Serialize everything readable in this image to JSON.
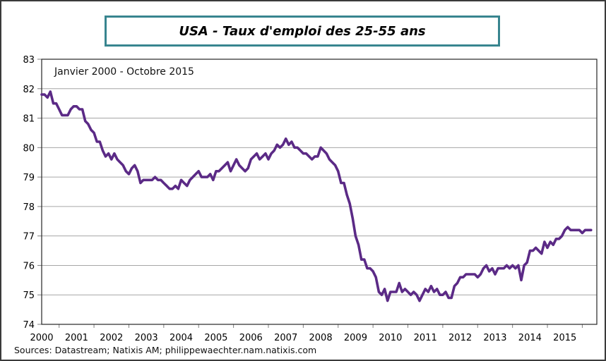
{
  "window": {
    "background": "#ffffff",
    "outer_border_color": "#3a3a3a"
  },
  "title": {
    "text": "USA - Taux d'emploi des 25-55 ans",
    "border_color": "#38858f"
  },
  "subtitle": "Janvier 2000 - Octobre 2015",
  "source": "Sources: Datastream; Natixis AM; philippewaechter.nam.natixis.com",
  "chart_data": {
    "type": "line",
    "title": "USA - Taux d'emploi des 25-55 ans",
    "subtitle": "Janvier 2000 - Octobre 2015",
    "frequency": "monthly",
    "x_start": "2000-01",
    "x_end": "2015-10",
    "ylim": [
      74,
      83
    ],
    "y_ticks": [
      83,
      82,
      81,
      80,
      79,
      78,
      77,
      76,
      75,
      74
    ],
    "x_tick_labels": [
      "2000",
      "2001",
      "2002",
      "2003",
      "2004",
      "2005",
      "2006",
      "2007",
      "2008",
      "2009",
      "2010",
      "2011",
      "2012",
      "2013",
      "2014",
      "2015"
    ],
    "grid": "horizontal",
    "legend": "none",
    "line_color": "#5b2a86",
    "grid_color": "#a6a6a6",
    "axis_color": "#262626",
    "tick_color": "#808080",
    "series": [
      {
        "name": "Taux d'emploi des 25-55 ans (USA), %",
        "values": [
          81.8,
          81.8,
          81.7,
          81.9,
          81.5,
          81.5,
          81.3,
          81.1,
          81.1,
          81.1,
          81.3,
          81.4,
          81.4,
          81.3,
          81.3,
          80.9,
          80.8,
          80.6,
          80.5,
          80.2,
          80.2,
          79.9,
          79.7,
          79.8,
          79.6,
          79.8,
          79.6,
          79.5,
          79.4,
          79.2,
          79.1,
          79.3,
          79.4,
          79.2,
          78.8,
          78.9,
          78.9,
          78.9,
          78.9,
          79.0,
          78.9,
          78.9,
          78.8,
          78.7,
          78.6,
          78.6,
          78.7,
          78.6,
          78.9,
          78.8,
          78.7,
          78.9,
          79.0,
          79.1,
          79.2,
          79.0,
          79.0,
          79.0,
          79.1,
          78.9,
          79.2,
          79.2,
          79.3,
          79.4,
          79.5,
          79.2,
          79.4,
          79.6,
          79.4,
          79.3,
          79.2,
          79.3,
          79.6,
          79.7,
          79.8,
          79.6,
          79.7,
          79.8,
          79.6,
          79.8,
          79.9,
          80.1,
          80.0,
          80.1,
          80.3,
          80.1,
          80.2,
          80.0,
          80.0,
          79.9,
          79.8,
          79.8,
          79.7,
          79.6,
          79.7,
          79.7,
          80.0,
          79.9,
          79.8,
          79.6,
          79.5,
          79.4,
          79.2,
          78.8,
          78.8,
          78.4,
          78.1,
          77.6,
          77.0,
          76.7,
          76.2,
          76.2,
          75.9,
          75.9,
          75.8,
          75.6,
          75.1,
          75.0,
          75.2,
          74.8,
          75.1,
          75.1,
          75.1,
          75.4,
          75.1,
          75.2,
          75.1,
          75.0,
          75.1,
          75.0,
          74.8,
          75.0,
          75.2,
          75.1,
          75.3,
          75.1,
          75.2,
          75.0,
          75.0,
          75.1,
          74.9,
          74.9,
          75.3,
          75.4,
          75.6,
          75.6,
          75.7,
          75.7,
          75.7,
          75.7,
          75.6,
          75.7,
          75.9,
          76.0,
          75.8,
          75.9,
          75.7,
          75.9,
          75.9,
          75.9,
          76.0,
          75.9,
          76.0,
          75.9,
          76.0,
          75.5,
          76.0,
          76.1,
          76.5,
          76.5,
          76.6,
          76.5,
          76.4,
          76.8,
          76.6,
          76.8,
          76.7,
          76.9,
          76.9,
          77.0,
          77.2,
          77.3,
          77.2,
          77.2,
          77.2,
          77.2,
          77.1,
          77.2,
          77.2,
          77.2
        ]
      }
    ]
  }
}
